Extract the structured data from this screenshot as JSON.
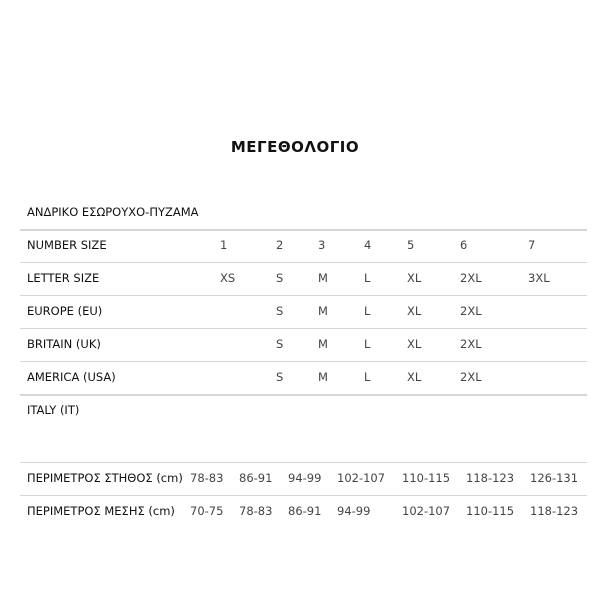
{
  "title": "ΜΕΓΕΘΟΛΟΓΙΟ",
  "subtitle": "ΑΝΔΡΙΚΟ ΕΣΩΡΟΥΧΟ-ΠΥΖΑΜΑ",
  "size_rows": [
    {
      "label": "NUMBER SIZE",
      "values": [
        "1",
        "2",
        "3",
        "4",
        "5",
        "6",
        "7"
      ]
    },
    {
      "label": "LETTER SIZE",
      "values": [
        "XS",
        "S",
        "M",
        "L",
        "XL",
        "2XL",
        "3XL"
      ]
    },
    {
      "label": "EUROPE (EU)",
      "values": [
        "",
        "S",
        "M",
        "L",
        "XL",
        "2XL",
        ""
      ]
    },
    {
      "label": "BRITAIN (UK)",
      "values": [
        "",
        "S",
        "M",
        "L",
        "XL",
        "2XL",
        ""
      ]
    },
    {
      "label": "AMERICA (USA)",
      "values": [
        "",
        "S",
        "M",
        "L",
        "XL",
        "2XL",
        ""
      ]
    },
    {
      "label": "ITALY (IT)",
      "values": [
        "",
        "",
        "",
        "",
        "",
        "",
        ""
      ]
    }
  ],
  "measure_rows": [
    {
      "label": "ΠΕΡΙΜΕΤΡΟΣ ΣΤΗΘΟΣ (cm)",
      "values": [
        "78-83",
        "86-91",
        "94-99",
        "102-107",
        "110-115",
        "118-123",
        "126-131"
      ]
    },
    {
      "label": "ΠΕΡΙΜΕΤΡΟΣ ΜΕΣΗΣ (cm)",
      "values": [
        "70-75",
        "78-83",
        "86-91",
        "94-99",
        "102-107",
        "110-115",
        "118-123"
      ]
    }
  ]
}
